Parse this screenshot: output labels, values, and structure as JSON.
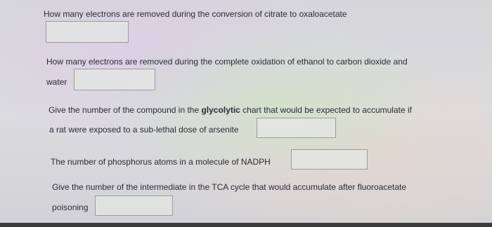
{
  "questions": [
    {
      "lines": [
        "How many electrons are removed during the conversion of citrate to oxaloacetate"
      ]
    },
    {
      "lines": [
        "How many electrons are removed during the complete oxidation of ethanol to carbon dioxide and",
        "water"
      ]
    },
    {
      "first_line": {
        "before": "Give the number of the compound in the ",
        "bold": "glycolytic",
        "after": " chart that would be expected to accumulate if"
      },
      "lines": [
        "a rat were exposed to a sub-lethal dose of arsenite"
      ]
    },
    {
      "lines": [
        "The number of phosphorus atoms in a molecule of NADPH"
      ]
    },
    {
      "lines": [
        "Give the number of the intermediate in the TCA cycle that would accumulate after fluoroacetate",
        "poisoning"
      ]
    }
  ]
}
